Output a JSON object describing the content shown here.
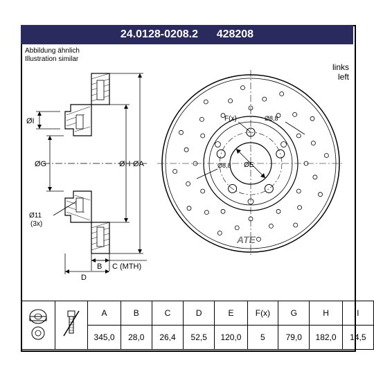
{
  "header": {
    "part_number": "24.0128-0208.2",
    "ref_number": "428208"
  },
  "subtitle": {
    "line1": "Abbildung ähnlich",
    "line2": "Illustration similar"
  },
  "side_label": {
    "line1": "links",
    "line2": "left"
  },
  "drawing": {
    "annotations": {
      "diaI": "ØI",
      "diaG": "ØG",
      "diaH": "ØH",
      "diaA": "ØA",
      "diaE": "ØE",
      "dia11": "Ø11",
      "x3": "(3x)",
      "dia88_1": "Ø8,8",
      "dia88_2": "Ø8,8",
      "B": "B",
      "C": "C (MTH)",
      "D": "D",
      "Fx": "F(x)"
    },
    "colors": {
      "line": "#000000",
      "hatch": "#000000",
      "text": "#000000",
      "bg": "#ffffff"
    }
  },
  "table": {
    "headers": [
      "A",
      "B",
      "C",
      "D",
      "E",
      "F(x)",
      "G",
      "H",
      "I"
    ],
    "values": [
      "345,0",
      "28,0",
      "26,4",
      "52,5",
      "120,0",
      "5",
      "79,0",
      "182,0",
      "14,5"
    ]
  }
}
